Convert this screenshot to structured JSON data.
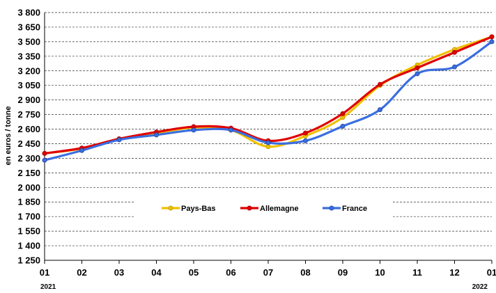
{
  "chart_data": {
    "type": "line",
    "ylabel": "en euros / tonne",
    "categories": [
      "01",
      "02",
      "03",
      "04",
      "05",
      "06",
      "07",
      "08",
      "09",
      "10",
      "11",
      "12",
      "01"
    ],
    "year_labels": {
      "start": "2021",
      "end": "2022"
    },
    "y_ticks": [
      {
        "value": 1250,
        "label": "1 250"
      },
      {
        "value": 1400,
        "label": "1 400"
      },
      {
        "value": 1550,
        "label": "1 550"
      },
      {
        "value": 1700,
        "label": "1 700"
      },
      {
        "value": 1850,
        "label": "1 850"
      },
      {
        "value": 2000,
        "label": "2 000"
      },
      {
        "value": 2150,
        "label": "2 150"
      },
      {
        "value": 2300,
        "label": "2 300"
      },
      {
        "value": 2450,
        "label": "2 450"
      },
      {
        "value": 2600,
        "label": "2 600"
      },
      {
        "value": 2750,
        "label": "2 750"
      },
      {
        "value": 2900,
        "label": "2 900"
      },
      {
        "value": 3050,
        "label": "3 050"
      },
      {
        "value": 3200,
        "label": "3 200"
      },
      {
        "value": 3350,
        "label": "3 350"
      },
      {
        "value": 3500,
        "label": "3 500"
      },
      {
        "value": 3650,
        "label": "3 650"
      },
      {
        "value": 3800,
        "label": "3 800"
      }
    ],
    "ylim": [
      1250,
      3800
    ],
    "grid": "horizontal dashed",
    "legend_position": "center",
    "series": [
      {
        "name": "Pays-Bas",
        "color": "#f0c000",
        "marker": "#c8a000",
        "values": [
          2350,
          2400,
          2500,
          2560,
          2615,
          2590,
          2420,
          2530,
          2720,
          3050,
          3260,
          3420,
          3550
        ]
      },
      {
        "name": "Allemagne",
        "color": "#e00000",
        "marker": "#b00000",
        "values": [
          2350,
          2405,
          2500,
          2570,
          2625,
          2610,
          2480,
          2560,
          2760,
          3060,
          3230,
          3390,
          3550
        ]
      },
      {
        "name": "France",
        "color": "#3a6ee0",
        "marker": "#2a4fa8",
        "values": [
          2280,
          2380,
          2490,
          2540,
          2590,
          2590,
          2460,
          2480,
          2630,
          2800,
          3170,
          3240,
          3500
        ]
      }
    ]
  }
}
